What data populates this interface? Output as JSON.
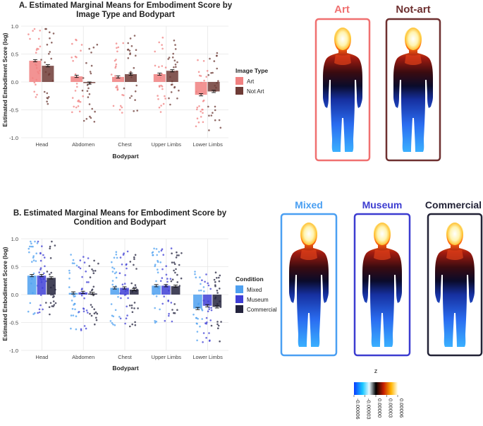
{
  "colors": {
    "art": "#f08080",
    "not_art": "#6e3b36",
    "mixed": "#4ea0f0",
    "museum": "#3f3fd6",
    "commercial": "#23233d",
    "grid": "#e6e6e6"
  },
  "chart_data": [
    {
      "type": "bar",
      "title_line1": "A. Estimated Marginal Means for Embodiment Score by",
      "title_line2": "Image Type and Bodypart",
      "xlabel": "Bodypart",
      "ylabel": "Estimated Embodiment Score (log)",
      "ylim": [
        -1.0,
        1.0
      ],
      "yticks": [
        "1.0",
        "0.5",
        "0.0",
        "-0.5",
        "-1.0"
      ],
      "ytick_values": [
        1.0,
        0.5,
        0.0,
        -0.5,
        -1.0
      ],
      "categories": [
        "Head",
        "Abdomen",
        "Chest",
        "Upper Limbs",
        "Lower Limbs"
      ],
      "legend_title": "Image Type",
      "legend_position": "right",
      "grid": true,
      "series": [
        {
          "name": "Art",
          "values": [
            0.38,
            0.1,
            0.09,
            0.14,
            -0.23
          ],
          "errors": [
            0.02,
            0.02,
            0.02,
            0.02,
            0.02
          ]
        },
        {
          "name": "Not Art",
          "values": [
            0.29,
            -0.02,
            0.14,
            0.2,
            -0.17
          ],
          "errors": [
            0.02,
            0.02,
            0.02,
            0.02,
            0.02
          ]
        }
      ]
    },
    {
      "type": "bar",
      "title_line1": "B. Estimated Marginal Means for Embodiment Score by",
      "title_line2": "Condition and Bodypart",
      "xlabel": "Bodypart",
      "ylabel": "Estimated Embodiment Score (log)",
      "ylim": [
        -1.0,
        1.0
      ],
      "yticks": [
        "1.0",
        "0.5",
        "0.0",
        "-0.5",
        "-1.0"
      ],
      "ytick_values": [
        1.0,
        0.5,
        0.0,
        -0.5,
        -1.0
      ],
      "categories": [
        "Head",
        "Abdomen",
        "Chest",
        "Upper Limbs",
        "Lower Limbs"
      ],
      "legend_title": "Condition",
      "legend_position": "right",
      "grid": true,
      "series": [
        {
          "name": "Mixed",
          "values": [
            0.34,
            0.03,
            0.12,
            0.16,
            -0.25
          ],
          "errors": [
            0.02,
            0.02,
            0.02,
            0.02,
            0.02
          ]
        },
        {
          "name": "Museum",
          "values": [
            0.34,
            0.04,
            0.12,
            0.16,
            -0.2
          ],
          "errors": [
            0.02,
            0.02,
            0.02,
            0.02,
            0.02
          ]
        },
        {
          "name": "Commercial",
          "values": [
            0.3,
            0.02,
            0.09,
            0.15,
            -0.22
          ],
          "errors": [
            0.02,
            0.02,
            0.02,
            0.02,
            0.02
          ]
        }
      ]
    }
  ],
  "body_maps": {
    "top": [
      {
        "label": "Art",
        "color": "#f07070"
      },
      {
        "label": "Not-art",
        "color": "#6e3030"
      }
    ],
    "bottom": [
      {
        "label": "Mixed",
        "color": "#4a9ff2"
      },
      {
        "label": "Museum",
        "color": "#3c3cd0"
      },
      {
        "label": "Commercial",
        "color": "#222236"
      }
    ]
  },
  "colorbar": {
    "title": "z",
    "tick_labels": [
      "-0.00006",
      "-0.00003",
      "0.00000",
      "0.00003",
      "0.00006"
    ]
  }
}
